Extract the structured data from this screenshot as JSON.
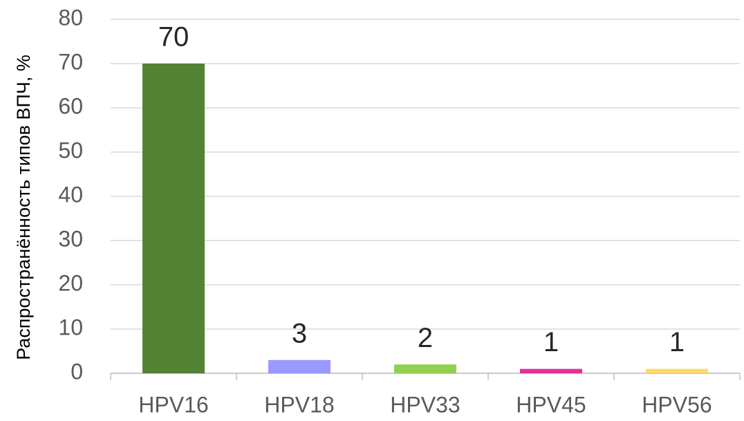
{
  "chart_data": {
    "type": "bar",
    "y_label": "Распространённость типов  ВПЧ, %",
    "categories": [
      "HPV16",
      "HPV18",
      "HPV33",
      "HPV45",
      "HPV56"
    ],
    "values": [
      70,
      3,
      2,
      1,
      1
    ],
    "colors": [
      "#548235",
      "#9999ff",
      "#92d050",
      "#e0309a",
      "#ffd966"
    ],
    "ylim": [
      0,
      80
    ],
    "yticks": [
      0,
      10,
      20,
      30,
      40,
      50,
      60,
      70,
      80
    ],
    "grid": true
  }
}
